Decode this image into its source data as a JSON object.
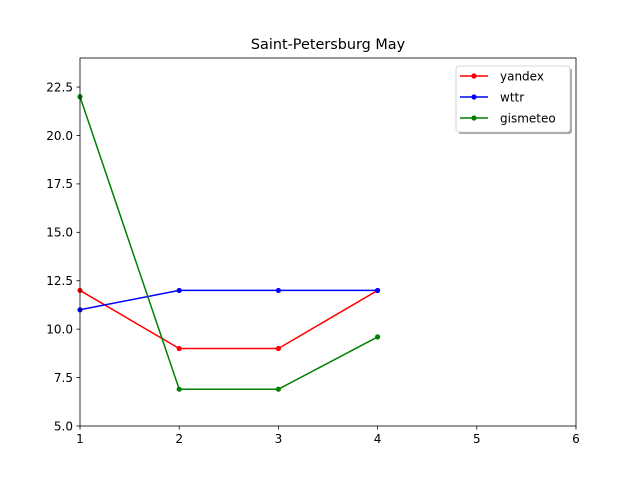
{
  "chart_data": {
    "type": "line",
    "title": "Saint-Petersburg May",
    "xlabel": "",
    "ylabel": "",
    "xlim": [
      1,
      6
    ],
    "ylim": [
      5.0,
      24.0
    ],
    "xticks": [
      1,
      2,
      3,
      4,
      5,
      6
    ],
    "yticks": [
      5.0,
      7.5,
      10.0,
      12.5,
      15.0,
      17.5,
      20.0,
      22.5
    ],
    "grid": false,
    "legend_position": "top-right",
    "x": [
      1,
      2,
      3,
      4
    ],
    "series": [
      {
        "name": "yandex",
        "color": "#ff0000",
        "values": [
          12,
          9,
          9,
          12
        ]
      },
      {
        "name": "wttr",
        "color": "#0000ff",
        "values": [
          11,
          12,
          12,
          12
        ]
      },
      {
        "name": "gismeteo",
        "color": "#008000",
        "values": [
          22,
          6.9,
          6.9,
          9.6
        ]
      }
    ]
  }
}
